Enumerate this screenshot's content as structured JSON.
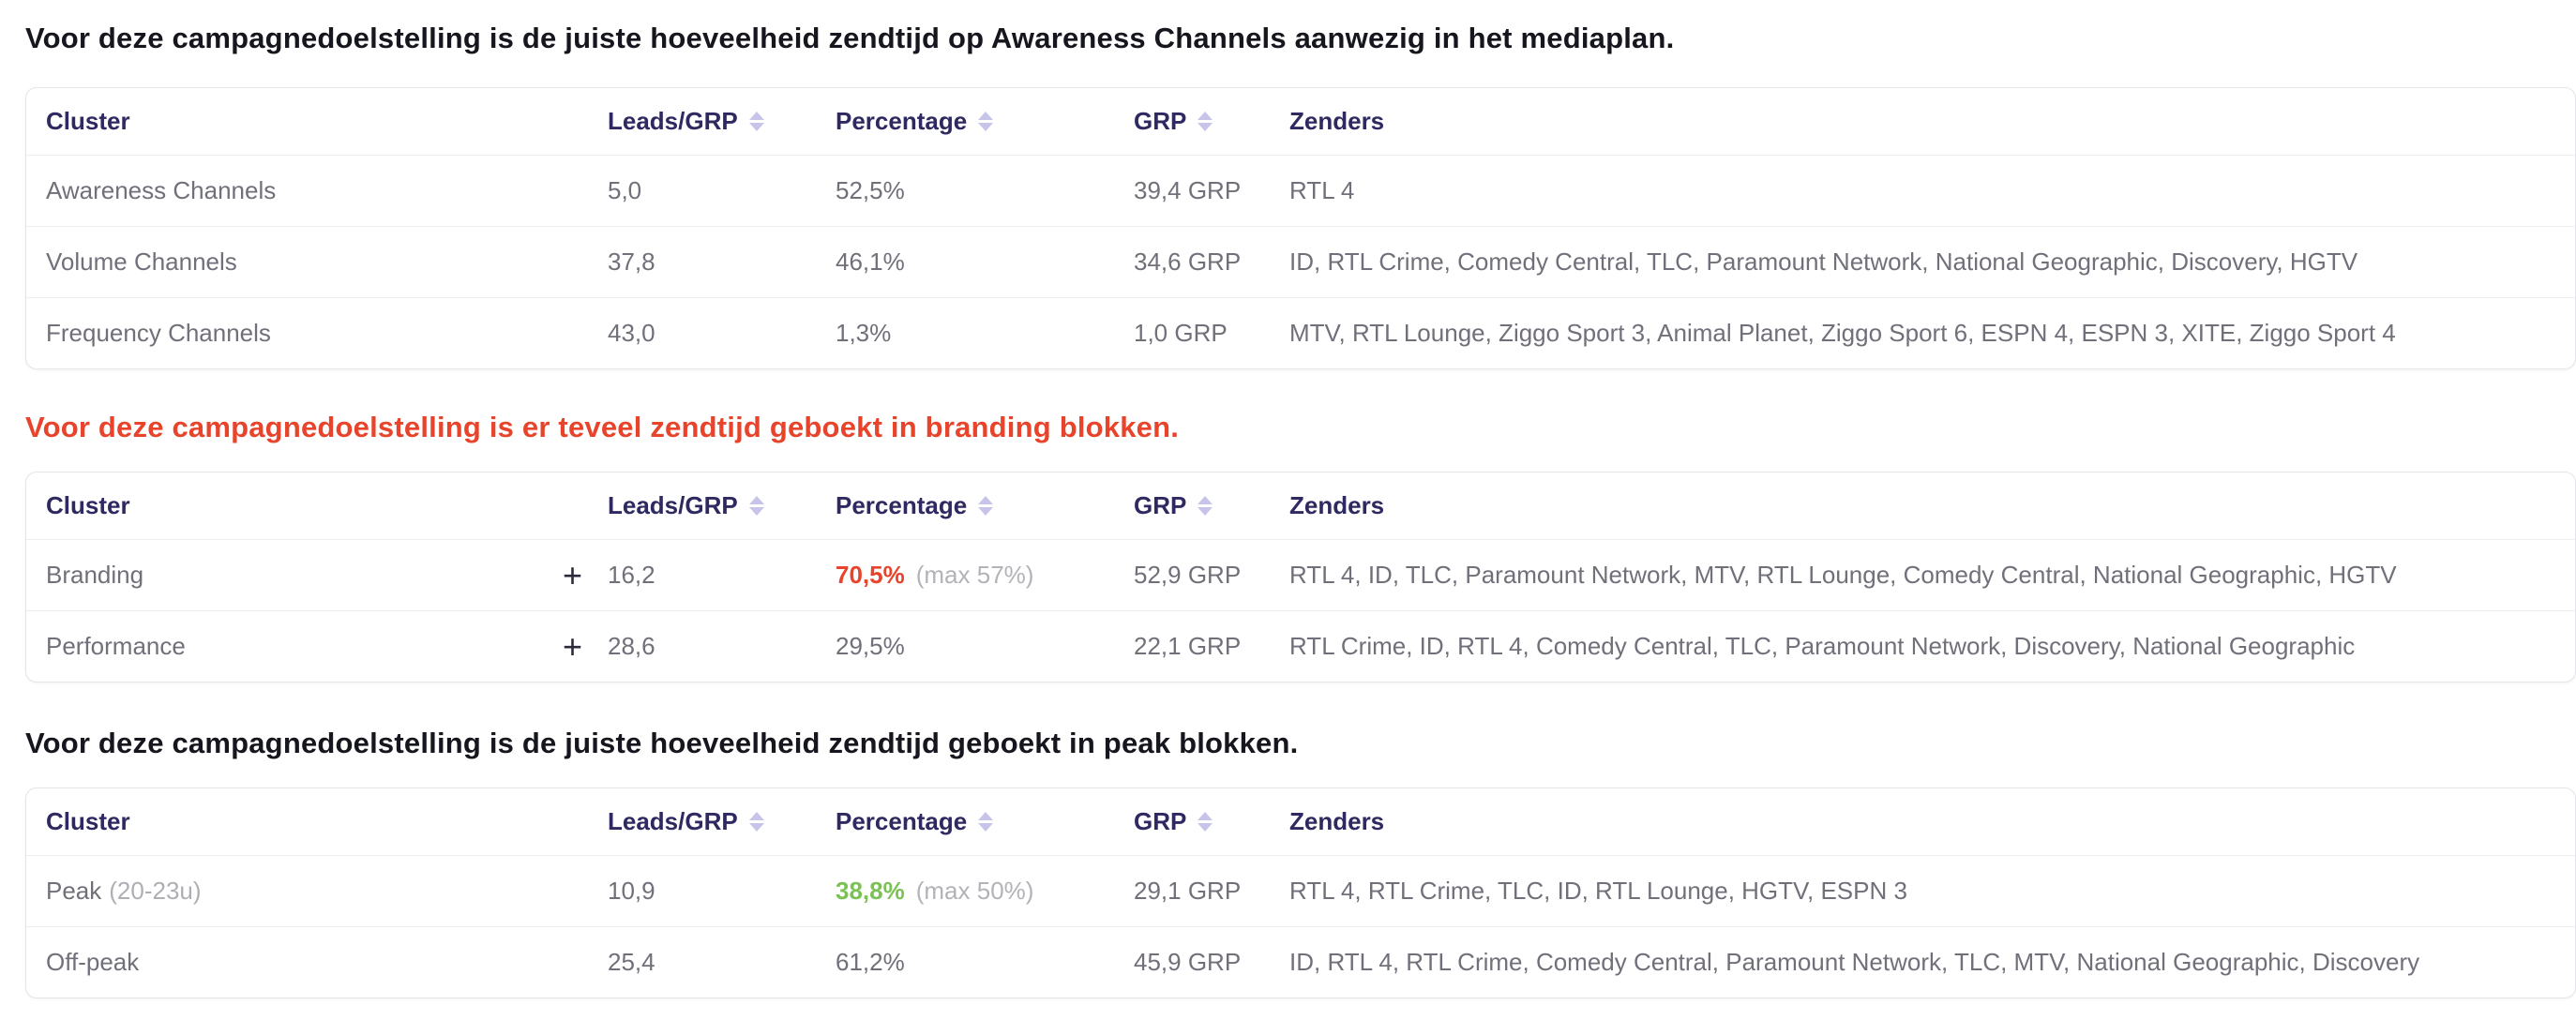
{
  "colors": {
    "heading_text": "#16161f",
    "alert_heading_text": "#e8432b",
    "table_header_text": "#2e2961",
    "body_text": "#70707a",
    "muted_text": "#aeaeb5",
    "over_limit_value": "#e8432b",
    "within_limit_value": "#7bc254",
    "sort_icon": "#c7c4ea"
  },
  "columns": {
    "cluster": "Cluster",
    "leads_grp": "Leads/GRP",
    "percentage": "Percentage",
    "grp": "GRP",
    "zenders": "Zenders"
  },
  "sections": [
    {
      "heading": "Voor deze campagnedoelstelling is de juiste hoeveelheid zendtijd op Awareness Channels aanwezig in het mediaplan.",
      "rows": [
        {
          "cluster": "Awareness Channels",
          "leads_grp": "5,0",
          "percentage": "52,5%",
          "grp": "39,4 GRP",
          "zenders": "RTL 4"
        },
        {
          "cluster": "Volume Channels",
          "leads_grp": "37,8",
          "percentage": "46,1%",
          "grp": "34,6 GRP",
          "zenders": "ID, RTL Crime, Comedy Central, TLC, Paramount Network, National Geographic, Discovery, HGTV"
        },
        {
          "cluster": "Frequency Channels",
          "leads_grp": "43,0",
          "percentage": "1,3%",
          "grp": "1,0 GRP",
          "zenders": "MTV, RTL Lounge, Ziggo Sport 3, Animal Planet, Ziggo Sport 6, ESPN 4, ESPN 3, XITE, Ziggo Sport 4"
        }
      ]
    },
    {
      "heading": "Voor deze campagnedoelstelling is er teveel zendtijd geboekt in branding blokken.",
      "rows": [
        {
          "cluster": "Branding",
          "expand_icon": "+",
          "leads_grp": "16,2",
          "percentage": "70,5%",
          "max_note": "(max 57%)",
          "grp": "52,9 GRP",
          "zenders": "RTL 4, ID, TLC, Paramount Network, MTV, RTL Lounge, Comedy Central, National Geographic, HGTV"
        },
        {
          "cluster": "Performance",
          "expand_icon": "+",
          "leads_grp": "28,6",
          "percentage": "29,5%",
          "grp": "22,1 GRP",
          "zenders": "RTL Crime, ID, RTL 4, Comedy Central, TLC, Paramount Network, Discovery, National Geographic"
        }
      ]
    },
    {
      "heading": "Voor deze campagnedoelstelling is de juiste hoeveelheid zendtijd geboekt in peak blokken.",
      "rows": [
        {
          "cluster": "Peak",
          "cluster_suffix": "(20-23u)",
          "leads_grp": "10,9",
          "percentage": "38,8%",
          "max_note": "(max 50%)",
          "grp": "29,1 GRP",
          "zenders": "RTL 4, RTL Crime, TLC, ID, RTL Lounge, HGTV, ESPN 3"
        },
        {
          "cluster": "Off-peak",
          "leads_grp": "25,4",
          "percentage": "61,2%",
          "grp": "45,9 GRP",
          "zenders": "ID, RTL 4, RTL Crime, Comedy Central, Paramount Network, TLC, MTV, National Geographic, Discovery"
        }
      ]
    }
  ]
}
